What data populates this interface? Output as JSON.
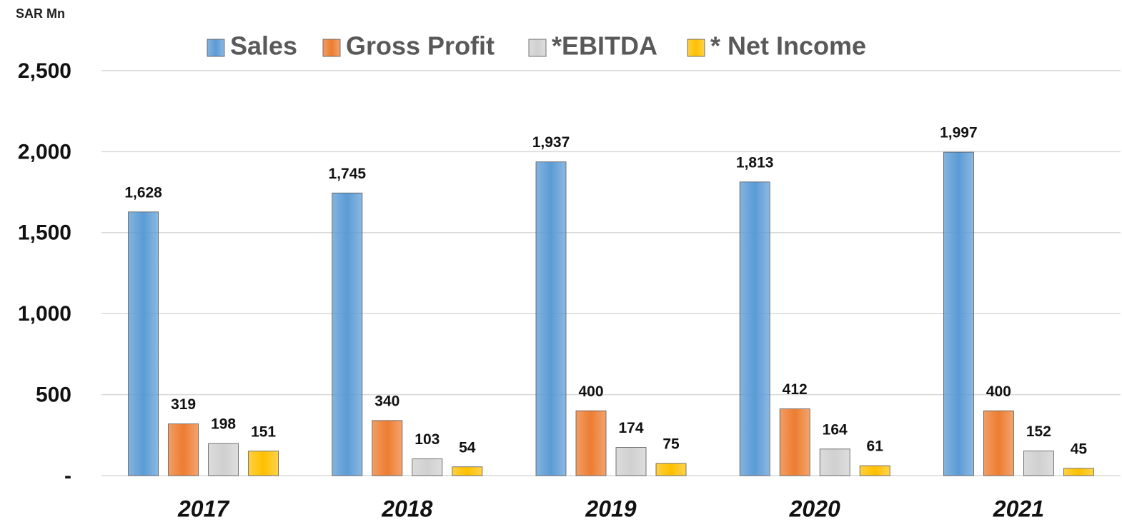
{
  "chart_data": {
    "type": "bar",
    "y_axis_label": "SAR Mn",
    "categories": [
      "2017",
      "2018",
      "2019",
      "2020",
      "2021"
    ],
    "series": [
      {
        "name": "Sales",
        "color": "#5b9bd5",
        "values": [
          1628,
          1745,
          1937,
          1813,
          1997
        ],
        "value_labels": [
          "1,628",
          "1,745",
          "1,937",
          "1,813",
          "1,997"
        ]
      },
      {
        "name": "Gross Profit",
        "color": "#ed7d31",
        "values": [
          319,
          340,
          400,
          412,
          400
        ]
      },
      {
        "name": "*EBITDA",
        "color": "#d0d0d0",
        "values": [
          198,
          103,
          174,
          164,
          152
        ]
      },
      {
        "name": "* Net Income",
        "color": "#ffc000",
        "values": [
          151,
          54,
          75,
          61,
          45
        ]
      }
    ],
    "ylim": [
      0,
      2500
    ],
    "yticks": [
      {
        "value": 0,
        "label": "-"
      },
      500,
      {
        "value": 1000,
        "label": "1,000"
      },
      {
        "value": 1500,
        "label": "1,500"
      },
      {
        "value": 2000,
        "label": "2,000"
      },
      {
        "value": 2500,
        "label": "2,500"
      }
    ],
    "grid": true,
    "legend": "top"
  }
}
